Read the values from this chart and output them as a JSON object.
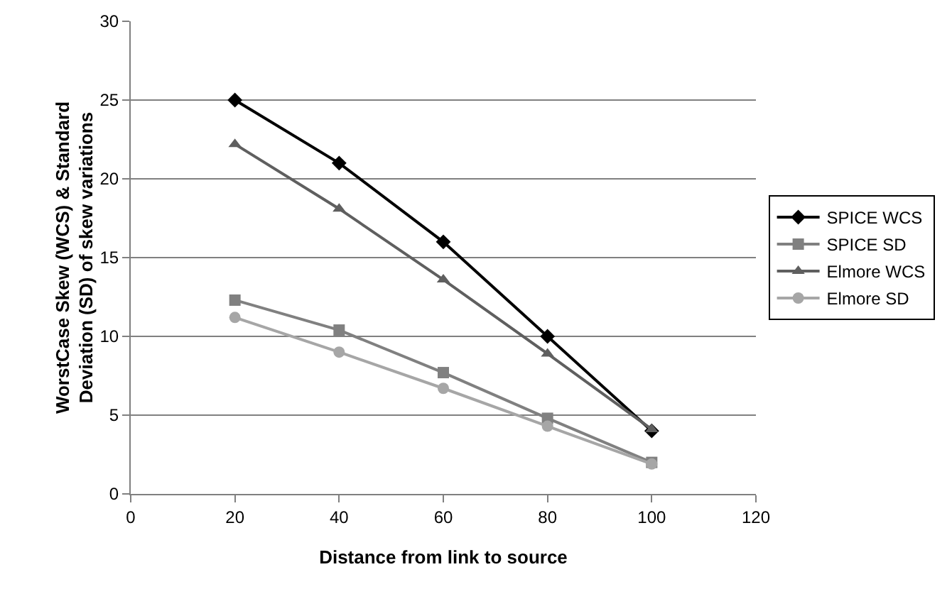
{
  "chart_data": {
    "type": "line",
    "xlabel": "Distance from link to source",
    "ylabel": "WorstCase Skew (WCS) & Standard Deviation (SD) of skew variations",
    "x": [
      20,
      40,
      60,
      80,
      100
    ],
    "series": [
      {
        "name": "SPICE WCS",
        "color": "#000000",
        "marker": "diamond",
        "values": [
          25,
          21,
          16,
          10,
          4
        ]
      },
      {
        "name": "SPICE SD",
        "color": "#808080",
        "marker": "square",
        "values": [
          12.3,
          10.4,
          7.7,
          4.8,
          2
        ]
      },
      {
        "name": "Elmore WCS",
        "color": "#5f5f5f",
        "marker": "triangle",
        "values": [
          22.2,
          18.1,
          13.6,
          8.9,
          4.1
        ]
      },
      {
        "name": "Elmore SD",
        "color": "#a6a6a6",
        "marker": "circle",
        "values": [
          11.2,
          9.0,
          6.7,
          4.3,
          1.9
        ]
      }
    ],
    "xlim": [
      0,
      120
    ],
    "xticks": [
      0,
      20,
      40,
      60,
      80,
      100,
      120
    ],
    "ylim": [
      0,
      30
    ],
    "yticks": [
      0,
      5,
      10,
      15,
      20,
      25,
      30
    ],
    "grid": "y",
    "legend": "right",
    "line_style": "solid"
  }
}
